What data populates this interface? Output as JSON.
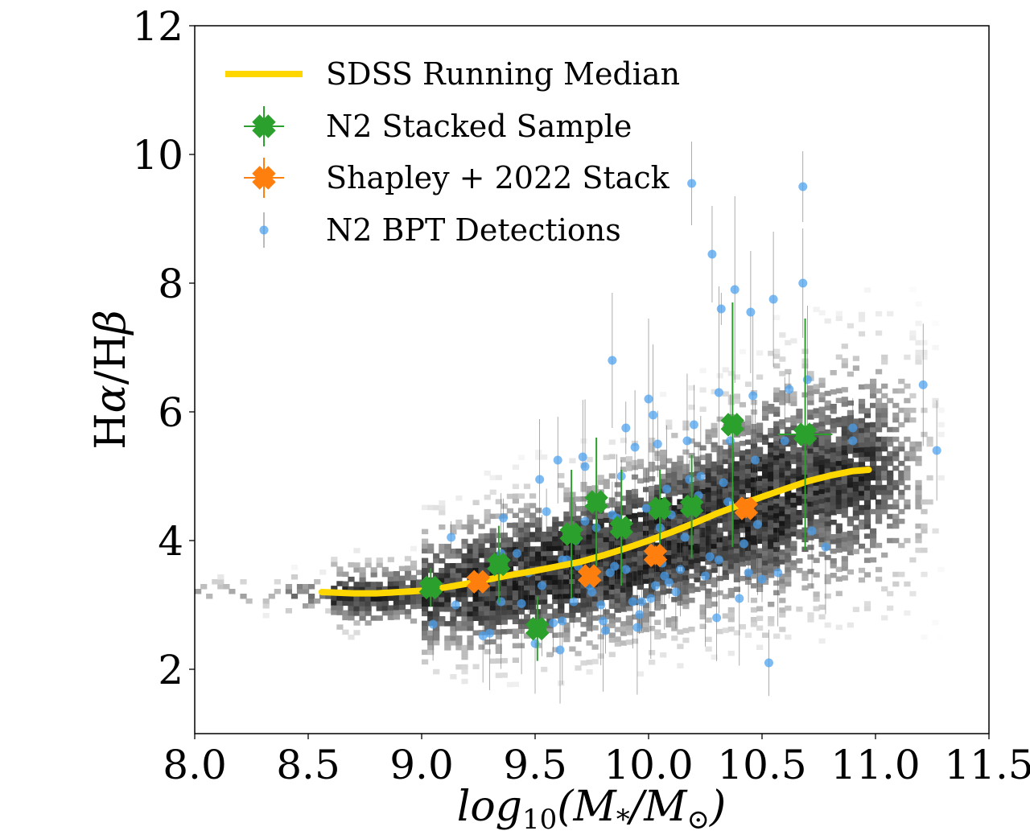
{
  "chart_data": {
    "type": "scatter",
    "xlabel": "log10(M*/M⊙)",
    "ylabel": "Hα/Hβ",
    "xlim": [
      8.0,
      11.5
    ],
    "ylim": [
      1.0,
      12.0
    ],
    "xticks": [
      "8.0",
      "8.5",
      "9.0",
      "9.5",
      "10.0",
      "10.5",
      "11.0",
      "11.5"
    ],
    "yticks": [
      "2",
      "4",
      "6",
      "8",
      "10",
      "12"
    ],
    "grid": false,
    "legend_position": "top-left",
    "colors": {
      "median": "#ffd700",
      "stacked": "#2ca02c",
      "shapley": "#ff7f0e",
      "detections": "#4a9ff0",
      "density": "#000000"
    },
    "background_density": {
      "description_hidden": true,
      "type": "2d-histogram",
      "mass_center": [
        8.5,
        11.0
      ],
      "ratio_center": [
        3.1,
        5.1
      ]
    },
    "series": [
      {
        "name": "SDSS Running Median",
        "kind": "line",
        "x": [
          8.56,
          8.7,
          8.8,
          8.9,
          9.0,
          9.1,
          9.2,
          9.3,
          9.4,
          9.5,
          9.6,
          9.7,
          9.8,
          9.9,
          10.0,
          10.1,
          10.2,
          10.3,
          10.4,
          10.5,
          10.6,
          10.7,
          10.8,
          10.9,
          10.97
        ],
        "y": [
          3.2,
          3.18,
          3.18,
          3.2,
          3.22,
          3.27,
          3.33,
          3.4,
          3.47,
          3.53,
          3.6,
          3.67,
          3.77,
          3.88,
          4.0,
          4.13,
          4.27,
          4.42,
          4.55,
          4.68,
          4.8,
          4.92,
          5.01,
          5.08,
          5.1
        ]
      },
      {
        "name": "N2 Stacked Sample",
        "kind": "errorbar",
        "x": [
          9.04,
          9.34,
          9.51,
          9.66,
          9.77,
          9.88,
          10.05,
          10.19,
          10.37,
          10.69
        ],
        "y": [
          3.27,
          3.63,
          2.63,
          4.1,
          4.6,
          4.2,
          4.5,
          4.53,
          5.8,
          5.65
        ],
        "yerr": [
          0.3,
          0.6,
          0.5,
          1.0,
          1.0,
          0.9,
          0.6,
          0.8,
          1.9,
          1.8
        ],
        "xerr": [
          0.04,
          0.04,
          0.04,
          0.04,
          0.04,
          0.04,
          0.04,
          0.04,
          0.04,
          0.12
        ]
      },
      {
        "name": "Shapley + 2022 Stack",
        "kind": "errorbar",
        "x": [
          9.25,
          9.74,
          10.03,
          10.43
        ],
        "y": [
          3.36,
          3.45,
          3.77,
          4.5
        ],
        "yerr": [
          0.1,
          0.1,
          0.15,
          0.15
        ],
        "xerr": [
          0.0,
          0.0,
          0.0,
          0.0
        ]
      },
      {
        "name": "N2 BPT Detections",
        "kind": "scatter",
        "x": [
          9.13,
          9.15,
          9.05,
          9.27,
          9.3,
          9.35,
          9.36,
          9.42,
          9.47,
          9.5,
          9.52,
          9.53,
          9.55,
          9.58,
          9.6,
          9.61,
          9.62,
          9.64,
          9.67,
          9.68,
          9.69,
          9.71,
          9.72,
          9.72,
          9.74,
          9.75,
          9.77,
          9.79,
          9.8,
          9.81,
          9.83,
          9.84,
          9.85,
          9.86,
          9.88,
          9.9,
          9.9,
          9.93,
          9.94,
          9.95,
          9.96,
          9.97,
          9.99,
          10.0,
          10.01,
          10.02,
          10.03,
          10.04,
          10.05,
          10.07,
          10.08,
          10.09,
          10.1,
          10.12,
          10.14,
          10.16,
          10.17,
          10.18,
          10.19,
          10.2,
          10.22,
          10.23,
          10.25,
          10.27,
          10.28,
          10.3,
          10.31,
          10.31,
          10.32,
          10.33,
          10.35,
          10.36,
          10.38,
          10.4,
          10.42,
          10.44,
          10.45,
          10.46,
          10.47,
          10.48,
          10.5,
          10.53,
          10.55,
          10.57,
          10.6,
          10.62,
          10.68,
          10.68,
          10.7,
          10.72,
          10.78,
          10.9,
          10.9,
          11.21,
          11.27,
          9.35,
          9.44,
          9.62,
          9.84,
          10.06
        ],
        "y": [
          4.05,
          3.0,
          2.7,
          2.52,
          2.56,
          3.05,
          4.35,
          3.8,
          3.5,
          2.4,
          4.95,
          3.3,
          4.45,
          2.72,
          5.25,
          2.3,
          2.75,
          3.7,
          3.05,
          4.0,
          3.6,
          5.3,
          5.15,
          4.3,
          3.3,
          3.2,
          4.2,
          3.0,
          2.75,
          2.6,
          3.5,
          6.8,
          3.6,
          4.35,
          5.0,
          5.75,
          3.55,
          3.05,
          5.45,
          2.65,
          2.85,
          3.05,
          4.5,
          6.2,
          3.1,
          5.95,
          3.3,
          5.5,
          4.2,
          3.45,
          4.8,
          3.35,
          4.4,
          3.2,
          3.55,
          4.05,
          5.55,
          4.95,
          9.55,
          5.8,
          4.7,
          5.0,
          3.45,
          3.75,
          8.45,
          2.8,
          3.7,
          6.3,
          7.6,
          4.9,
          4.6,
          5.55,
          7.9,
          3.1,
          3.95,
          3.5,
          7.55,
          6.25,
          5.25,
          4.25,
          3.4,
          2.1,
          7.75,
          3.5,
          5.55,
          6.35,
          9.5,
          8.0,
          6.5,
          4.15,
          3.9,
          5.55,
          5.75,
          6.42,
          5.4,
          3.8,
          3.02,
          3.7,
          4.4,
          3.65
        ]
      }
    ]
  }
}
